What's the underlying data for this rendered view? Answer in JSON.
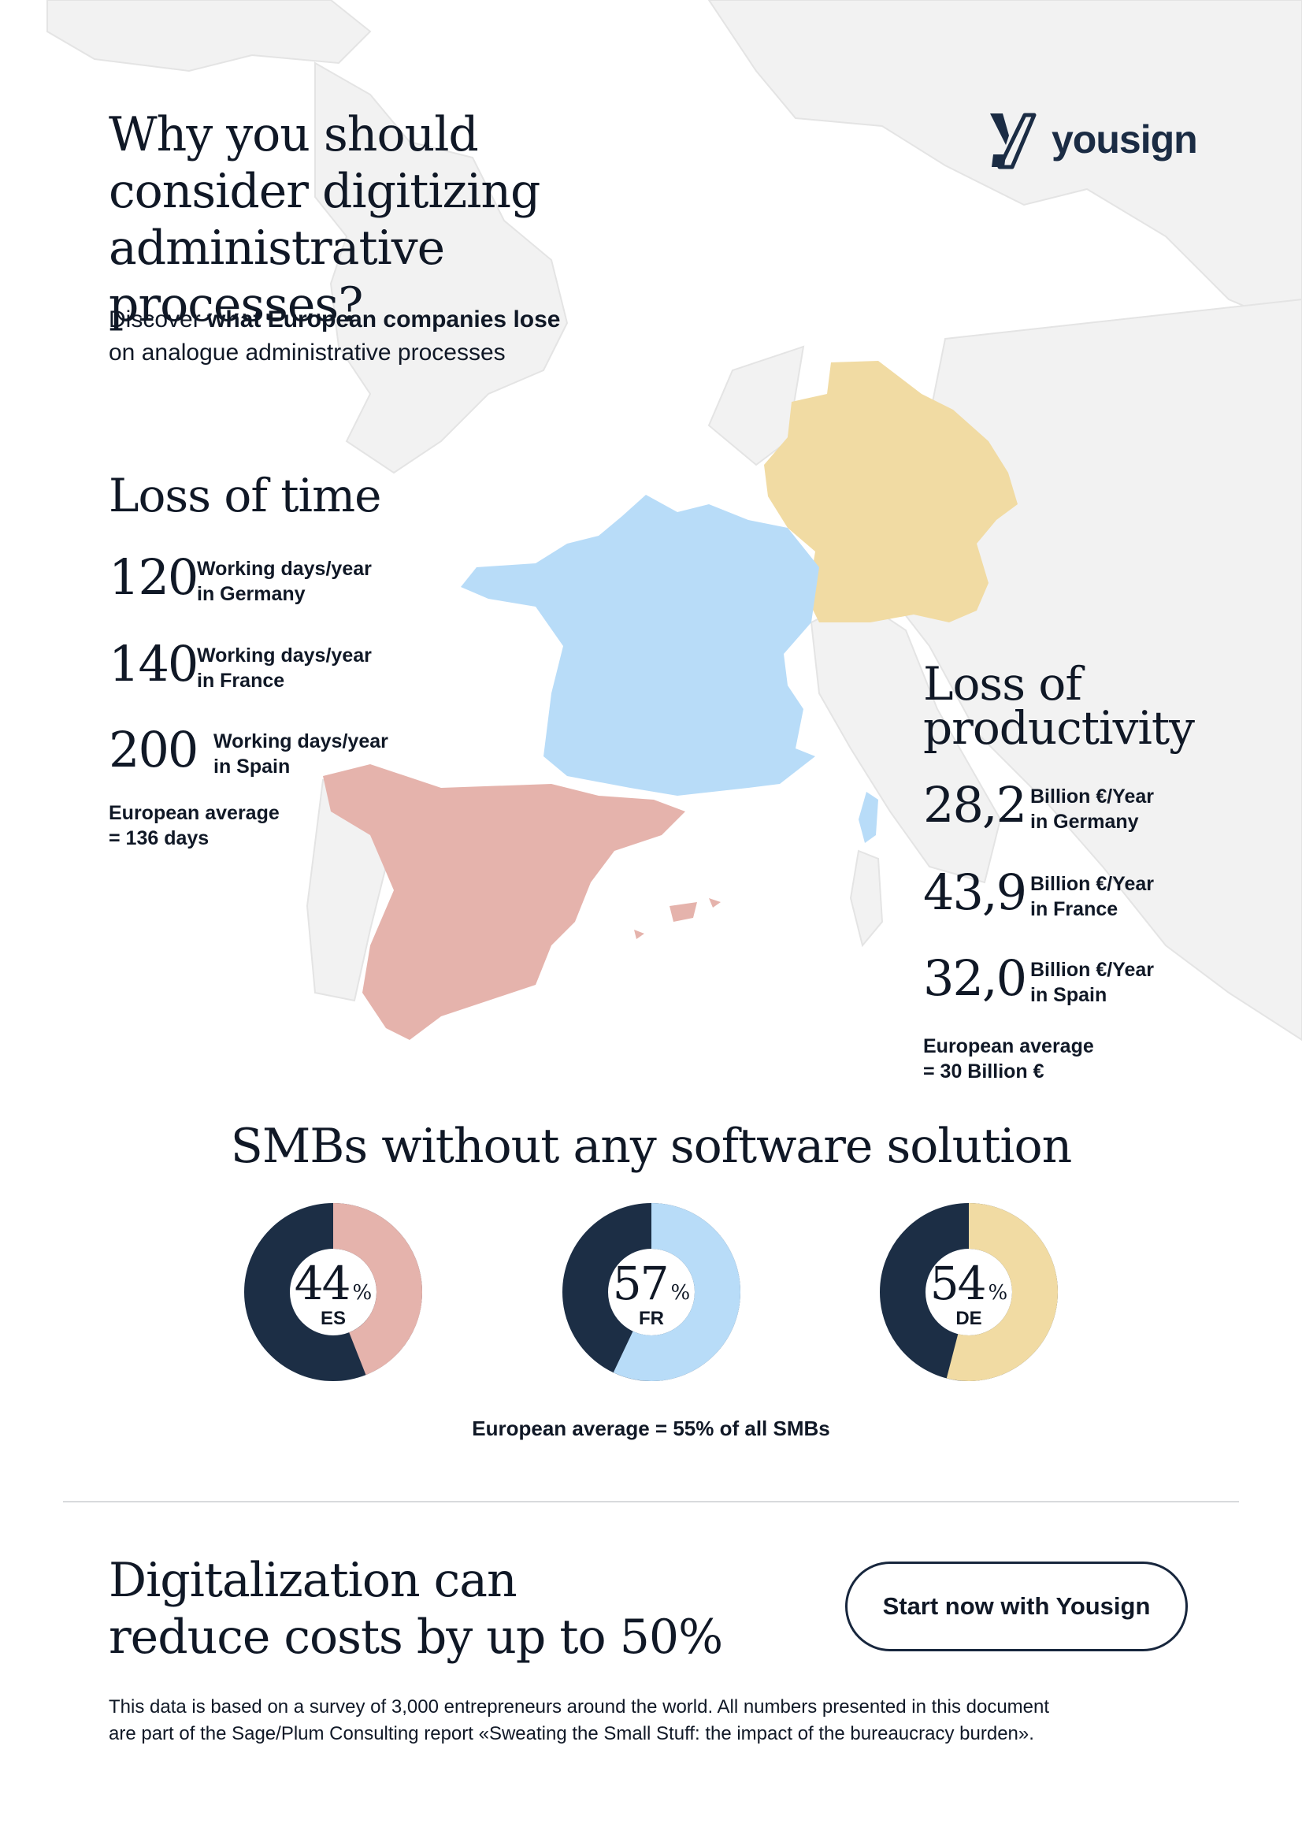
{
  "header": {
    "title_lines": [
      "Why you should",
      "consider digitizing",
      "administrative processes?"
    ],
    "subtitle_prefix": "Discover ",
    "subtitle_bold": "what European companies lose",
    "subtitle_line2": "on analogue administrative processes"
  },
  "brand": {
    "name": "yousign",
    "logo_icon": "yousign-logo-icon",
    "color": "#1b2c44"
  },
  "loss_of_time": {
    "heading": "Loss of time",
    "items": [
      {
        "value": "120",
        "label_line1": "Working days/year",
        "label_line2": "in Germany"
      },
      {
        "value": "140",
        "label_line1": "Working days/year",
        "label_line2": "in France"
      },
      {
        "value": "200",
        "label_line1": "Working days/year",
        "label_line2": "in Spain"
      }
    ],
    "avg_line1": "European average",
    "avg_line2": "= 136 days"
  },
  "loss_of_productivity": {
    "heading_line1": "Loss of",
    "heading_line2": "productivity",
    "items": [
      {
        "value": "28,2",
        "label_line1": "Billion €/Year",
        "label_line2": "in Germany"
      },
      {
        "value": "43,9",
        "label_line1": "Billion €/Year",
        "label_line2": "in France"
      },
      {
        "value": "32,0",
        "label_line1": "Billion €/Year",
        "label_line2": "in Spain"
      }
    ],
    "avg_line1": "European average",
    "avg_line2": "= 30 Billion €"
  },
  "map": {
    "highlighted_countries": [
      "France",
      "Germany",
      "Spain"
    ],
    "colors": {
      "france": "#b8dcf8",
      "germany": "#f1dba3",
      "spain": "#e5b3ac",
      "land": "#f2f2f2",
      "borders": "#e2e2e2"
    }
  },
  "smb": {
    "title": "SMBs without any software solution",
    "percent_sign": "%",
    "avg": "European average = 55% of all SMBs",
    "dark_color": "#1c2e45",
    "items": [
      {
        "value": 44,
        "code": "ES",
        "color": "#e5b3ac"
      },
      {
        "value": 57,
        "code": "FR",
        "color": "#b8dcf8"
      },
      {
        "value": 54,
        "code": "DE",
        "color": "#f1dba3"
      }
    ]
  },
  "cta": {
    "title_line1": "Digitalization can",
    "title_line2": "reduce costs by up to 50%",
    "button_label": "Start now with Yousign"
  },
  "footnote": {
    "line1": "This data is based on a survey of 3,000 entrepreneurs around the world. All numbers presented in this document",
    "line2": "are part of the Sage/Plum Consulting report «Sweating the Small Stuff: the impact of the bureaucracy burden»."
  }
}
